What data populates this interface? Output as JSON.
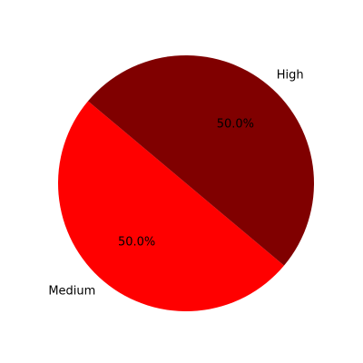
{
  "chart_data": {
    "type": "pie",
    "title": "",
    "slices": [
      {
        "label": "Medium",
        "value": 50,
        "percent_label": "50.0%",
        "color": "#ff0000"
      },
      {
        "label": "High",
        "value": 50,
        "percent_label": "50.0%",
        "color": "#800000"
      }
    ],
    "start_angle_deg": 140,
    "direction": "counterclockwise",
    "legend": "none"
  }
}
